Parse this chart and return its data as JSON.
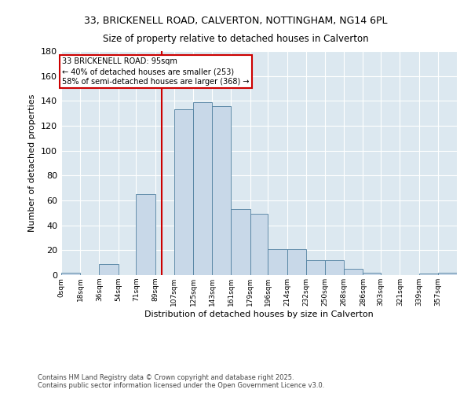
{
  "title_line1": "33, BRICKENELL ROAD, CALVERTON, NOTTINGHAM, NG14 6PL",
  "title_line2": "Size of property relative to detached houses in Calverton",
  "xlabel": "Distribution of detached houses by size in Calverton",
  "ylabel": "Number of detached properties",
  "bar_counts": [
    2,
    0,
    9,
    0,
    65,
    0,
    133,
    139,
    136,
    53,
    49,
    21,
    21,
    12,
    12,
    5,
    2,
    0,
    0,
    1,
    2
  ],
  "bin_edges": [
    0,
    18,
    36,
    54,
    71,
    89,
    107,
    125,
    143,
    161,
    179,
    196,
    214,
    232,
    250,
    268,
    286,
    303,
    321,
    339,
    357,
    375
  ],
  "bin_labels": [
    "0sqm",
    "18sqm",
    "36sqm",
    "54sqm",
    "71sqm",
    "89sqm",
    "107sqm",
    "125sqm",
    "143sqm",
    "161sqm",
    "179sqm",
    "196sqm",
    "214sqm",
    "232sqm",
    "250sqm",
    "268sqm",
    "286sqm",
    "303sqm",
    "321sqm",
    "339sqm",
    "357sqm"
  ],
  "bar_color": "#c8d8e8",
  "bar_edge_color": "#5080a0",
  "vline_color": "#cc0000",
  "vline_x": 95,
  "annotation_text": "33 BRICKENELL ROAD: 95sqm\n← 40% of detached houses are smaller (253)\n58% of semi-detached houses are larger (368) →",
  "annotation_box_color": "#ffffff",
  "annotation_box_edge": "#cc0000",
  "ylim": [
    0,
    180
  ],
  "yticks": [
    0,
    20,
    40,
    60,
    80,
    100,
    120,
    140,
    160,
    180
  ],
  "bg_color": "#dce8f0",
  "footer": "Contains HM Land Registry data © Crown copyright and database right 2025.\nContains public sector information licensed under the Open Government Licence v3.0."
}
